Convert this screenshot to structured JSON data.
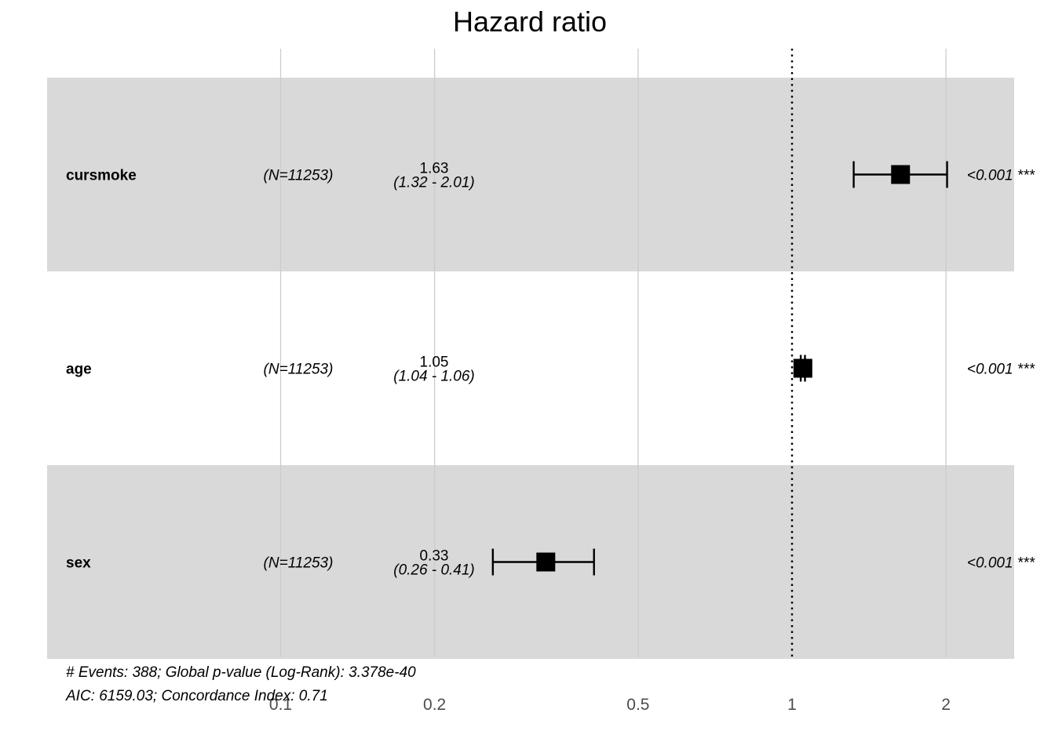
{
  "chart_data": {
    "type": "forest",
    "title": "Hazard ratio",
    "x_scale": "log",
    "xlim": [
      0.055,
      2.6
    ],
    "ticks": [
      0.1,
      0.2,
      0.5,
      1,
      2
    ],
    "tick_labels": [
      "0.1",
      "0.2",
      "0.5",
      "1",
      "2"
    ],
    "reference_line": 1,
    "grid": true,
    "rows": [
      {
        "variable": "cursmoke",
        "n": "(N=11253)",
        "hr": 1.63,
        "hr_label": "1.63",
        "ci_low": 1.32,
        "ci_high": 2.01,
        "ci_label": "(1.32 - 2.01)",
        "p_label": "<0.001 ***",
        "shaded": true
      },
      {
        "variable": "age",
        "n": "(N=11253)",
        "hr": 1.05,
        "hr_label": "1.05",
        "ci_low": 1.04,
        "ci_high": 1.06,
        "ci_label": "(1.04 - 1.06)",
        "p_label": "<0.001 ***",
        "shaded": false
      },
      {
        "variable": "sex",
        "n": "(N=11253)",
        "hr": 0.33,
        "hr_label": "0.33",
        "ci_low": 0.26,
        "ci_high": 0.41,
        "ci_label": "(0.26 - 0.41)",
        "p_label": "<0.001 ***",
        "shaded": true
      }
    ],
    "footer": [
      "# Events: 388; Global p-value (Log-Rank): 3.378e-40",
      "AIC: 6159.03; Concordance Index: 0.71"
    ],
    "colors": {
      "band": "#d9d9d9",
      "grid": "#cccccc",
      "marker": "#000000",
      "reference": "#000000"
    }
  }
}
